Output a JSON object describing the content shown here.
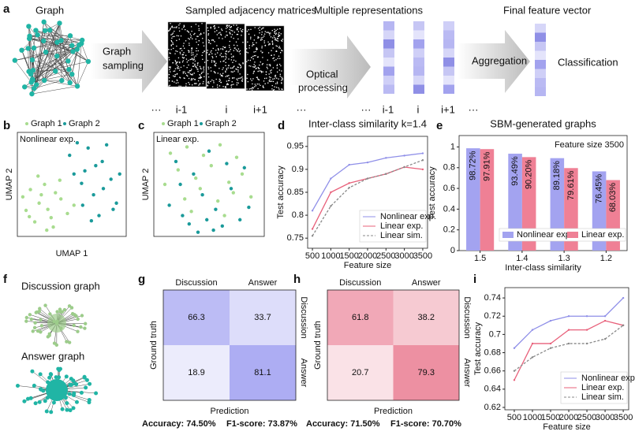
{
  "panel_labels": [
    "a",
    "b",
    "c",
    "d",
    "e",
    "f",
    "g",
    "h",
    "i"
  ],
  "pipeline": {
    "graph_title": "Graph",
    "sampling_lines": [
      "Graph",
      "sampling"
    ],
    "matrices_title": "Sampled adjacency matrices",
    "optical_lines": [
      "Optical",
      "processing"
    ],
    "representations_title": "Multiple representations",
    "aggregation": "Aggregation",
    "final_title": "Final feature vector",
    "classification": "Classification",
    "matrix_index_labels": [
      "···",
      "i-1",
      "i",
      "i+1",
      "···"
    ],
    "rep_index_labels": [
      "···",
      "i-1",
      "i",
      "i+1",
      "···"
    ]
  },
  "graph_examples": {
    "discussion": "Discussion graph",
    "answer": "Answer graph"
  },
  "chart_data": [
    {
      "type": "scatter",
      "annotation": "Nonlinear exp.",
      "xlabel": "UMAP 1",
      "ylabel": "UMAP 2",
      "xlim": [
        0,
        10
      ],
      "ylim": [
        0,
        10
      ],
      "legend": "above",
      "series": [
        {
          "name": "Graph 1",
          "color": "#a8dc8f",
          "x": [
            1.2,
            2.0,
            0.8,
            3.1,
            2.5,
            4.0,
            1.6,
            3.5,
            2.8,
            0.5,
            4.6,
            1.9,
            3.3,
            2.2,
            5.2,
            1.1,
            3.9,
            2.7
          ],
          "values": [
            4.5,
            3.2,
            2.5,
            1.8,
            5.0,
            3.6,
            1.4,
            4.2,
            2.6,
            3.8,
            2.2,
            5.8,
            0.9,
            4.0,
            3.0,
            1.9,
            5.4,
            0.6
          ]
        },
        {
          "name": "Graph 2",
          "color": "#1a9a9a",
          "x": [
            6.5,
            7.8,
            5.5,
            8.6,
            7.0,
            6.2,
            9.1,
            4.8,
            7.5,
            8.2,
            5.9,
            6.8,
            9.4,
            7.2,
            8.8,
            5.2,
            6.0,
            7.9
          ],
          "values": [
            8.5,
            7.2,
            9.0,
            5.5,
            4.0,
            6.3,
            3.2,
            7.8,
            2.0,
            8.8,
            5.1,
            1.5,
            6.0,
            6.8,
            2.6,
            6.0,
            3.0,
            4.6
          ]
        }
      ]
    },
    {
      "type": "scatter",
      "annotation": "Linear exp.",
      "ylabel": "UMAP 2",
      "xlim": [
        0,
        10
      ],
      "ylim": [
        0,
        10
      ],
      "legend": "above",
      "series": [
        {
          "name": "Graph 1",
          "color": "#a8dc8f",
          "x": [
            1.5,
            3.0,
            4.5,
            6.0,
            7.5,
            2.2,
            5.2,
            8.0,
            3.8,
            6.8,
            1.0,
            4.2,
            7.2,
            2.8,
            5.8,
            8.8,
            3.4,
            6.4
          ],
          "values": [
            8.0,
            8.6,
            7.8,
            8.8,
            7.6,
            6.4,
            6.8,
            6.0,
            5.6,
            5.2,
            5.0,
            4.6,
            4.2,
            3.6,
            3.4,
            3.8,
            2.4,
            2.0
          ]
        },
        {
          "name": "Graph 2",
          "color": "#1a9a9a",
          "x": [
            2.0,
            3.6,
            5.0,
            6.6,
            8.2,
            1.4,
            4.4,
            7.0,
            2.6,
            5.6,
            8.6,
            3.2,
            4.8,
            6.2,
            7.8,
            4.0,
            5.4,
            2.4
          ],
          "values": [
            7.2,
            6.0,
            8.2,
            7.0,
            6.6,
            3.0,
            4.0,
            4.6,
            2.0,
            2.6,
            2.8,
            1.2,
            1.6,
            1.0,
            1.6,
            0.4,
            0.6,
            5.0
          ]
        }
      ]
    },
    {
      "type": "line",
      "title": "Inter-class similarity k=1.4",
      "xlabel": "Feature size",
      "ylabel": "Test accuracy",
      "x": [
        500,
        1000,
        1500,
        2000,
        2500,
        3000,
        3500
      ],
      "xlim": [
        370,
        3630
      ],
      "xticks": [
        500,
        1000,
        1500,
        2000,
        2500,
        3000,
        3500
      ],
      "ylim": [
        0.728,
        0.972
      ],
      "yticks": [
        0.75,
        0.8,
        0.85,
        0.9,
        0.95
      ],
      "legend": "lower right",
      "series": [
        {
          "name": "Nonlinear exp.",
          "color": "#8f8fe8",
          "style": "solid",
          "values": [
            0.81,
            0.88,
            0.91,
            0.915,
            0.925,
            0.93,
            0.935
          ]
        },
        {
          "name": "Linear exp.",
          "color": "#e8607a",
          "style": "solid",
          "values": [
            0.77,
            0.85,
            0.87,
            0.88,
            0.89,
            0.905,
            0.9
          ]
        },
        {
          "name": "Linear sim.",
          "color": "#888888",
          "style": "dashed",
          "values": [
            0.755,
            0.82,
            0.86,
            0.88,
            0.89,
            0.905,
            0.92
          ]
        }
      ]
    },
    {
      "type": "bar",
      "title": "SBM-generated graphs",
      "annotation": "Feature size 3500",
      "xlabel": "Inter-class similarity",
      "ylabel": "Test accuracy",
      "categories": [
        "1.5",
        "1.4",
        "1.3",
        "1.2"
      ],
      "ylim": [
        0,
        1.11
      ],
      "yticks": [
        0,
        0.2,
        0.4,
        0.6,
        0.8,
        1.0
      ],
      "legend": "lower center",
      "series": [
        {
          "name": "Nonlinear exp.",
          "color": "#a3a3f0",
          "values": [
            0.9872,
            0.9349,
            0.8918,
            0.7645
          ],
          "value_labels": [
            "98.72%",
            "93.49%",
            "89.18%",
            "76.45%"
          ]
        },
        {
          "name": "Linear exp.",
          "color": "#ef8095",
          "values": [
            0.9791,
            0.902,
            0.7961,
            0.6803
          ],
          "value_labels": [
            "97.91%",
            "90.20%",
            "79.61%",
            "68.03%"
          ]
        }
      ]
    },
    {
      "type": "heatmap",
      "xlabel": "Prediction",
      "ylabel": "Ground truth",
      "categories": [
        "Discussion",
        "Answer"
      ],
      "values": [
        [
          66.3,
          33.7
        ],
        [
          18.9,
          81.1
        ]
      ],
      "color": "#9a9af0",
      "footer": [
        "Accuracy: 74.50%",
        "F1-score: 73.87%"
      ]
    },
    {
      "type": "heatmap",
      "xlabel": "Prediction",
      "ylabel": "Ground truth",
      "categories": [
        "Discussion",
        "Answer"
      ],
      "values": [
        [
          61.8,
          38.2
        ],
        [
          20.7,
          79.3
        ]
      ],
      "color": "#e8738a",
      "footer": [
        "Accuracy: 71.50%",
        "F1-score: 70.70%"
      ]
    },
    {
      "type": "line",
      "xlabel": "Feature size",
      "ylabel": "Test accuracy",
      "x": [
        500,
        1000,
        1500,
        2000,
        2500,
        3000,
        3500
      ],
      "xlim": [
        240,
        3650
      ],
      "xticks": [
        500,
        1000,
        1500,
        2000,
        2500,
        3000,
        3500
      ],
      "ylim": [
        0.6174,
        0.7513
      ],
      "yticks": [
        0.62,
        0.64,
        0.66,
        0.68,
        0.7,
        0.72,
        0.74
      ],
      "legend": "lower right",
      "series": [
        {
          "name": "Nonlinear exp.",
          "color": "#8f8fe8",
          "style": "solid",
          "values": [
            0.685,
            0.705,
            0.715,
            0.72,
            0.72,
            0.72,
            0.74
          ]
        },
        {
          "name": "Linear exp.",
          "color": "#e8607a",
          "style": "solid",
          "values": [
            0.65,
            0.69,
            0.69,
            0.705,
            0.705,
            0.715,
            0.71
          ]
        },
        {
          "name": "Linear sim.",
          "color": "#888888",
          "style": "dashed",
          "values": [
            0.66,
            0.675,
            0.685,
            0.69,
            0.69,
            0.695,
            0.71
          ]
        }
      ]
    }
  ]
}
